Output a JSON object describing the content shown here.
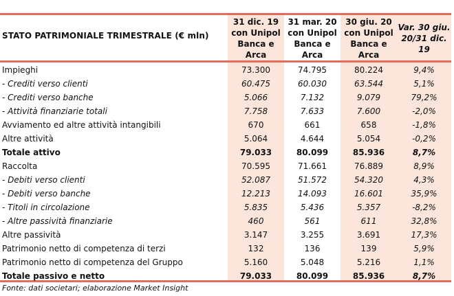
{
  "table": {
    "title": "STATO PATRIMONIALE TRIMESTRALE (€ mln)",
    "columns": [
      "31 dic. 19 con Unipol Banca e Arca",
      "31 mar. 20 con Unipol Banca e Arca",
      "30 giu. 20 con Unipol Banca e Arca",
      "Var. 30 giu. 20/31 dic. 19"
    ],
    "columns_lines": [
      [
        "31 dic. 19",
        "con Unipol",
        "Banca e",
        "Arca"
      ],
      [
        "31 mar. 20",
        "con Unipol",
        "Banca e",
        "Arca"
      ],
      [
        "30 giu. 20",
        "con Unipol",
        "Banca e",
        "Arca"
      ],
      [
        "Var. 30 giu.",
        "20/31 dic.",
        "19"
      ]
    ],
    "rows": [
      {
        "label": "Impieghi",
        "values": [
          "73.300",
          "74.795",
          "80.224",
          "9,4%"
        ],
        "style": "normal"
      },
      {
        "label": "- Crediti verso clienti",
        "values": [
          "60.475",
          "60.030",
          "63.544",
          "5,1%"
        ],
        "style": "sub"
      },
      {
        "label": "- Crediti verso banche",
        "values": [
          "5.066",
          "7.132",
          "9.079",
          "79,2%"
        ],
        "style": "sub"
      },
      {
        "label": "- Attività finanziarie totali",
        "values": [
          "7.758",
          "7.633",
          "7.600",
          "-2,0%"
        ],
        "style": "sub"
      },
      {
        "label": "Avviamento ed altre attività intangibili",
        "values": [
          "670",
          "661",
          "658",
          "-1,8%"
        ],
        "style": "normal"
      },
      {
        "label": "Altre attività",
        "values": [
          "5.064",
          "4.644",
          "5.054",
          "-0,2%"
        ],
        "style": "normal"
      },
      {
        "label": "Totale attivo",
        "values": [
          "79.033",
          "80.099",
          "85.936",
          "8,7%"
        ],
        "style": "total"
      },
      {
        "label": "Raccolta",
        "values": [
          "70.595",
          "71.661",
          "76.889",
          "8,9%"
        ],
        "style": "normal"
      },
      {
        "label": "- Debiti verso clienti",
        "values": [
          "52.087",
          "51.572",
          "54.320",
          "4,3%"
        ],
        "style": "sub"
      },
      {
        "label": "- Debiti verso banche",
        "values": [
          "12.213",
          "14.093",
          "16.601",
          "35,9%"
        ],
        "style": "sub"
      },
      {
        "label": "- Titoli in circolazione",
        "values": [
          "5.835",
          "5.436",
          "5.357",
          "-8,2%"
        ],
        "style": "sub"
      },
      {
        "label": "- Altre passività finanziarie",
        "values": [
          "460",
          "561",
          "611",
          "32,8%"
        ],
        "style": "sub"
      },
      {
        "label": "Altre passività",
        "values": [
          "3.147",
          "3.255",
          "3.691",
          "17,3%"
        ],
        "style": "normal"
      },
      {
        "label": "Patrimonio netto di competenza di terzi",
        "values": [
          "132",
          "136",
          "139",
          "5,9%"
        ],
        "style": "normal"
      },
      {
        "label": "Patrimonio netto di competenza del Gruppo",
        "values": [
          "5.160",
          "5.048",
          "5.216",
          "1,1%"
        ],
        "style": "normal"
      },
      {
        "label": "Totale passivo e netto",
        "values": [
          "79.033",
          "80.099",
          "85.936",
          "8,7%"
        ],
        "style": "total"
      }
    ]
  },
  "footnote": "Fonte: dati societari; elaborazione Market Insight",
  "colors": {
    "rule": "#e46c5a",
    "shade": "#fce6dc"
  }
}
